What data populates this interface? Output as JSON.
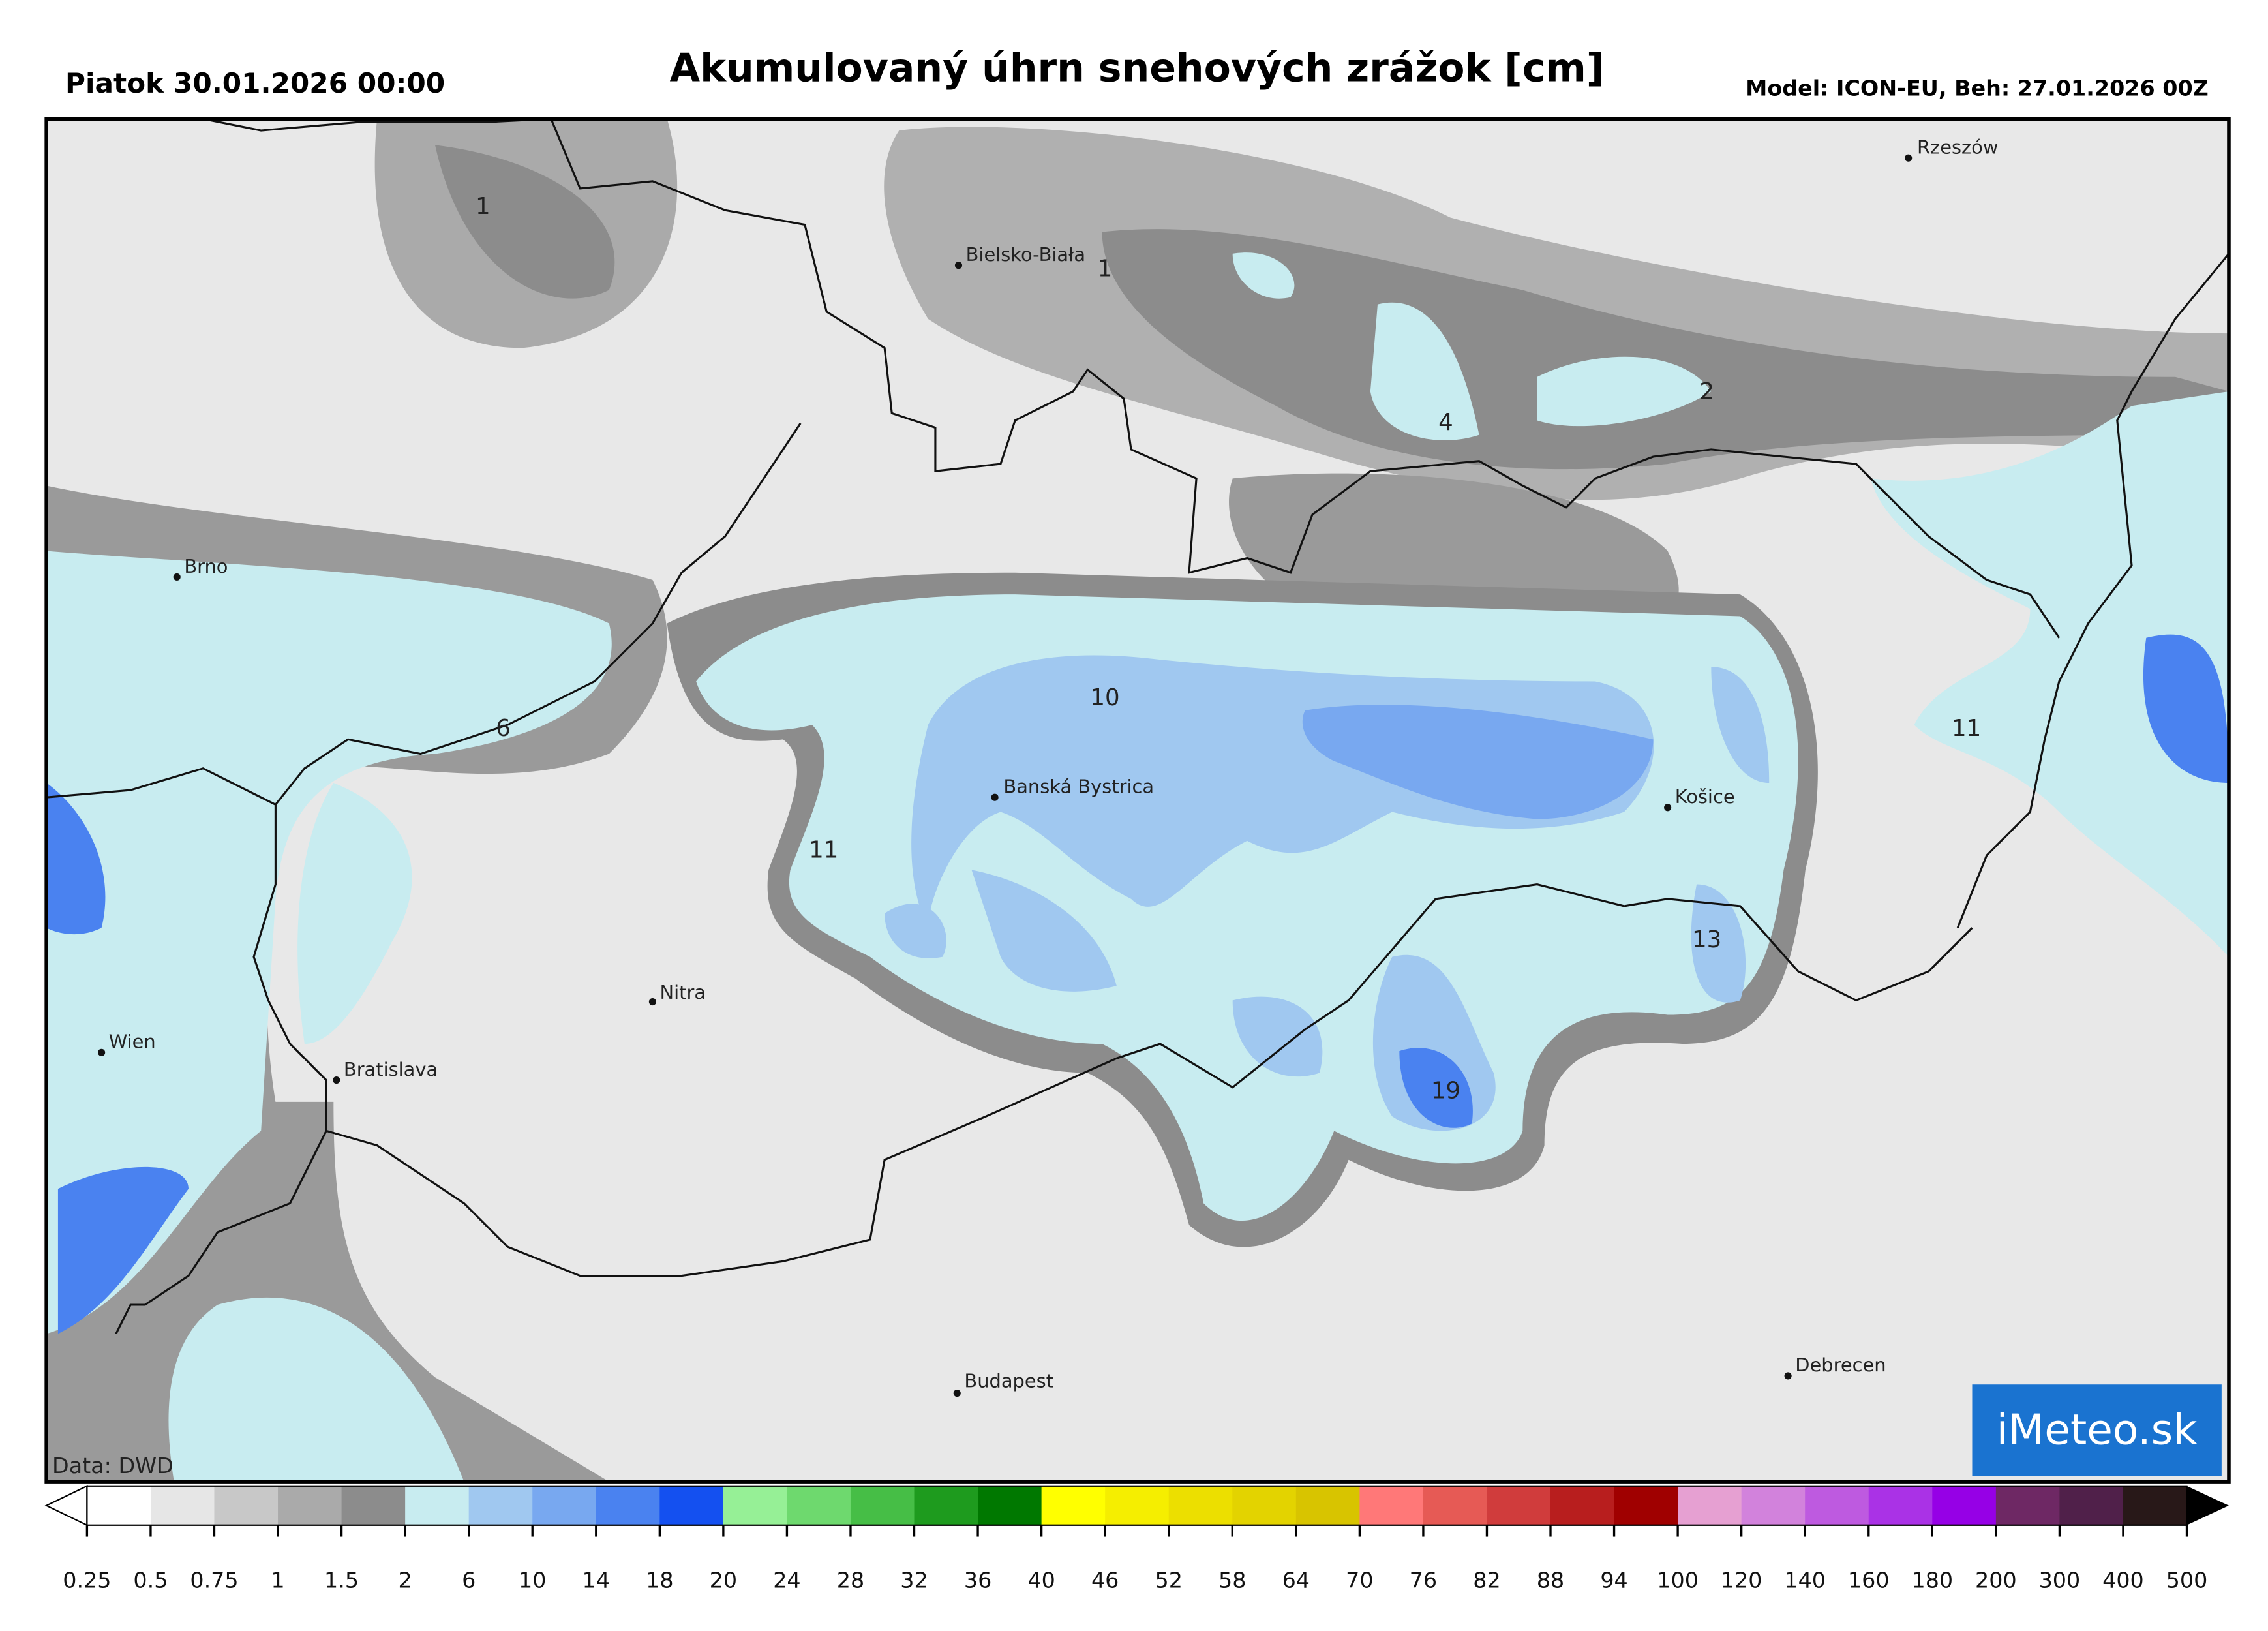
{
  "header": {
    "date": "Piatok 30.01.2026 00:00",
    "title": "Akumulovaný úhrn snehových zrážok [cm]",
    "model": "Model: ICON-EU, Beh: 27.01.2026 00Z"
  },
  "cities": [
    "Rzeszów",
    "Bielsko-Biała",
    "Brno",
    "Banská Bystrica",
    "Košice",
    "Nitra",
    "Wien",
    "Bratislava",
    "Budapest",
    "Debrecen"
  ],
  "map_labels": [
    "1",
    "1",
    "4",
    "2",
    "6",
    "10",
    "11",
    "11",
    "13",
    "19"
  ],
  "credit": "Data: DWD",
  "logo": "iMeteo.sk",
  "legend": {
    "ticks": [
      0.25,
      0.5,
      0.75,
      1,
      1.5,
      2,
      6,
      10,
      14,
      18,
      20,
      24,
      28,
      32,
      36,
      40,
      46,
      52,
      58,
      64,
      70,
      76,
      82,
      88,
      94,
      100,
      120,
      140,
      160,
      180,
      200,
      300,
      400,
      500
    ],
    "colors": [
      "#ffffff",
      "#e6e6e6",
      "#c8c8c8",
      "#aaaaaa",
      "#8c8c8c",
      "#c8ecf0",
      "#a0c8f0",
      "#78a8f0",
      "#4a82f0",
      "#1450f0",
      "#96f096",
      "#6ed96e",
      "#46be46",
      "#1e9b1e",
      "#007800",
      "#ffff00",
      "#f5ee00",
      "#ecdf00",
      "#e3d300",
      "#d8c400",
      "#ff7878",
      "#e65a55",
      "#d03c3c",
      "#b81e1e",
      "#a00000",
      "#e6a0d2",
      "#d282dc",
      "#be5ae0",
      "#aa32e6",
      "#9600e6",
      "#6e2864",
      "#50204a",
      "#281818"
    ]
  }
}
